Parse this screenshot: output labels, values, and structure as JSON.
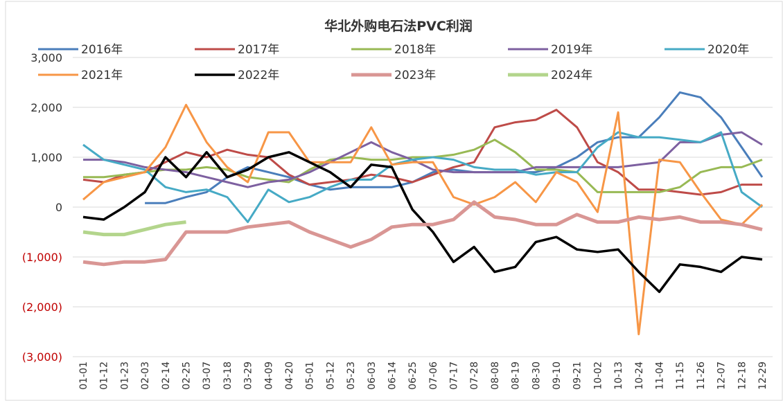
{
  "chart_data": {
    "type": "line",
    "title": "华北外购电石法PVC利润",
    "categories": [
      "01-01",
      "01-12",
      "01-23",
      "02-03",
      "02-14",
      "02-25",
      "03-07",
      "03-18",
      "03-29",
      "04-09",
      "04-20",
      "05-01",
      "05-12",
      "05-23",
      "06-03",
      "06-14",
      "06-25",
      "07-06",
      "07-17",
      "07-28",
      "08-08",
      "08-19",
      "08-30",
      "09-10",
      "09-21",
      "10-02",
      "10-13",
      "10-24",
      "11-04",
      "11-15",
      "11-26",
      "12-07",
      "12-18",
      "12-29"
    ],
    "ylim": [
      -3000,
      3000
    ],
    "yticks": [
      {
        "value": 3000,
        "label": "3,000"
      },
      {
        "value": 2000,
        "label": "2,000"
      },
      {
        "value": 1000,
        "label": "1,000"
      },
      0,
      {
        "value": -1000,
        "label": "(1,000)"
      },
      {
        "value": -2000,
        "label": "(2,000)"
      },
      {
        "value": -3000,
        "label": "(3,000)"
      }
    ],
    "negative_tick_color": "#c00000",
    "grid": true,
    "series": [
      {
        "name": "2016年",
        "color": "#4a7ebb",
        "width": 3,
        "values": [
          null,
          null,
          null,
          80,
          80,
          200,
          300,
          600,
          800,
          700,
          600,
          450,
          350,
          400,
          400,
          400,
          500,
          700,
          750,
          700,
          700,
          700,
          700,
          800,
          1000,
          1300,
          1400,
          1400,
          1800,
          2300,
          2200,
          1800,
          1200,
          600
        ]
      },
      {
        "name": "2017年",
        "color": "#be4b48",
        "width": 3,
        "values": [
          550,
          500,
          650,
          700,
          900,
          1100,
          1000,
          1150,
          1050,
          1000,
          650,
          450,
          500,
          550,
          650,
          600,
          500,
          650,
          800,
          900,
          1600,
          1700,
          1750,
          1950,
          1600,
          900,
          700,
          350,
          350,
          300,
          250,
          300,
          450,
          450
        ]
      },
      {
        "name": "2018年",
        "color": "#98b954",
        "width": 3,
        "values": [
          600,
          600,
          650,
          700,
          750,
          750,
          800,
          750,
          600,
          550,
          500,
          750,
          950,
          1000,
          950,
          950,
          1000,
          1000,
          1050,
          1150,
          1350,
          1100,
          750,
          750,
          700,
          300,
          300,
          300,
          300,
          400,
          700,
          800,
          800,
          950
        ]
      },
      {
        "name": "2019年",
        "color": "#7d60a0",
        "width": 3,
        "values": [
          950,
          950,
          900,
          800,
          750,
          700,
          600,
          500,
          400,
          500,
          550,
          700,
          900,
          1100,
          1300,
          1100,
          950,
          750,
          700,
          700,
          700,
          700,
          800,
          800,
          800,
          800,
          800,
          850,
          900,
          1300,
          1300,
          1450,
          1500,
          1250
        ]
      },
      {
        "name": "2020年",
        "color": "#46aac5",
        "width": 3,
        "values": [
          1250,
          950,
          850,
          750,
          400,
          300,
          350,
          200,
          -300,
          350,
          100,
          200,
          400,
          550,
          550,
          850,
          950,
          1000,
          950,
          800,
          750,
          750,
          650,
          700,
          700,
          1200,
          1500,
          1400,
          1400,
          1350,
          1300,
          1500,
          300,
          0
        ]
      },
      {
        "name": "2021年",
        "color": "#f79646",
        "width": 3,
        "values": [
          150,
          500,
          600,
          700,
          1200,
          2050,
          1300,
          800,
          500,
          1500,
          1500,
          900,
          900,
          900,
          1600,
          850,
          900,
          900,
          200,
          50,
          200,
          500,
          100,
          700,
          500,
          -100,
          1900,
          -2550,
          950,
          900,
          300,
          -250,
          -350,
          50
        ]
      },
      {
        "name": "2022年",
        "color": "#000000",
        "width": 3.5,
        "values": [
          -200,
          -250,
          0,
          300,
          1000,
          600,
          1100,
          600,
          750,
          1000,
          1100,
          900,
          700,
          400,
          850,
          800,
          -50,
          -500,
          -1100,
          -800,
          -1300,
          -1200,
          -700,
          -600,
          -850,
          -900,
          -850,
          -1300,
          -1700,
          -1150,
          -1200,
          -1300,
          -1000,
          -1050
        ]
      },
      {
        "name": "2023年",
        "color": "#d99694",
        "width": 5,
        "values": [
          -1100,
          -1150,
          -1100,
          -1100,
          -1050,
          -500,
          -500,
          -500,
          -400,
          -350,
          -300,
          -500,
          -650,
          -800,
          -650,
          -400,
          -350,
          -350,
          -250,
          100,
          -200,
          -250,
          -350,
          -350,
          -150,
          -300,
          -300,
          -200,
          -250,
          -200,
          -300,
          -300,
          -350,
          -450
        ]
      },
      {
        "name": "2024年",
        "color": "#b3d58c",
        "width": 5,
        "values": [
          -500,
          -550,
          -550,
          -450,
          -350,
          -300,
          null,
          null,
          null,
          null,
          null,
          null,
          null,
          null,
          null,
          null,
          null,
          null,
          null,
          null,
          null,
          null,
          null,
          null,
          null,
          null,
          null,
          null,
          null,
          null,
          null,
          null,
          null,
          null
        ]
      }
    ]
  }
}
